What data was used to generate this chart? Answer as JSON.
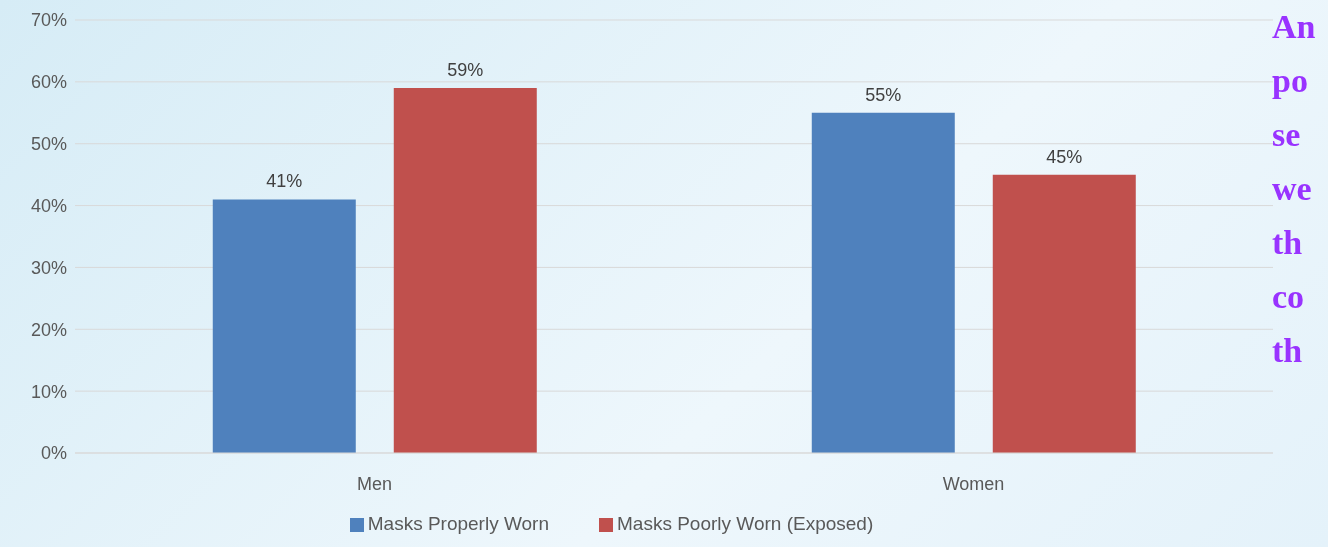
{
  "chart_data": {
    "type": "bar",
    "categories": [
      "Men",
      "Women"
    ],
    "series": [
      {
        "name": "Masks Properly Worn",
        "color": "#4f81bd",
        "values": [
          41,
          55
        ],
        "value_labels": [
          "41%",
          "55%"
        ]
      },
      {
        "name": "Masks Poorly Worn (Exposed)",
        "color": "#c0504d",
        "values": [
          59,
          45
        ],
        "value_labels": [
          "59%",
          "45%"
        ]
      }
    ],
    "ylim": [
      0,
      70
    ],
    "yticks": [
      {
        "value": 0,
        "label": "0%"
      },
      {
        "value": 10,
        "label": "10%"
      },
      {
        "value": 20,
        "label": "20%"
      },
      {
        "value": 30,
        "label": "30%"
      },
      {
        "value": 40,
        "label": "40%"
      },
      {
        "value": 50,
        "label": "50%"
      },
      {
        "value": 60,
        "label": "60%"
      },
      {
        "value": 70,
        "label": "70%"
      }
    ],
    "grid": "y",
    "legend": "bottom",
    "annotations": [
      "An",
      "po",
      "se",
      "we",
      "th",
      "co",
      "th"
    ]
  }
}
